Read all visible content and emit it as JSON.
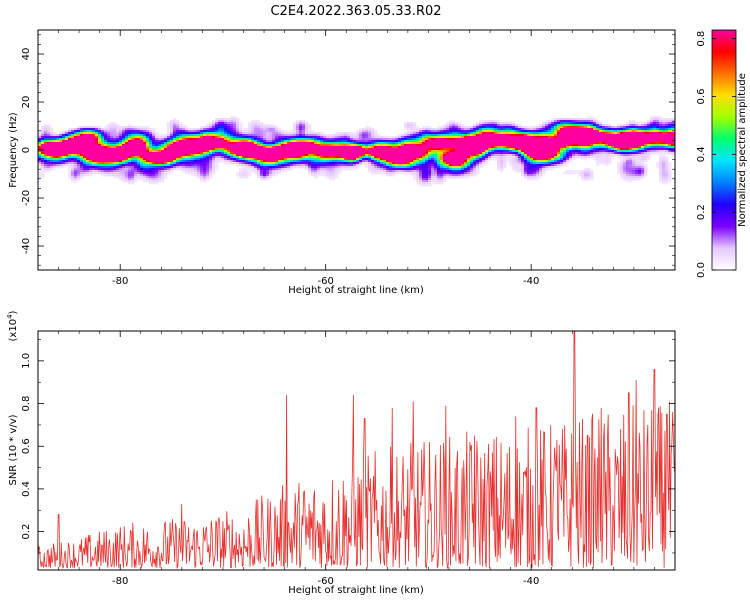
{
  "chart_data": [
    {
      "type": "heatmap",
      "title": "C2E4.2022.363.05.33.R02",
      "xlabel": "Height of straight line (km)",
      "ylabel": "Frequency (Hz)",
      "xlim": [
        -88,
        -26
      ],
      "ylim": [
        -50,
        50
      ],
      "xticks": [
        -80,
        -60,
        -40
      ],
      "yticks": [
        -40,
        -20,
        0,
        20,
        40
      ],
      "colorbar": {
        "label": "Normalized spectral amplitude",
        "range": [
          0.0,
          0.83
        ],
        "ticks": [
          0.0,
          0.2,
          0.4,
          0.6,
          0.8
        ],
        "colors": [
          "#ffffff",
          "#e6c8ff",
          "#7a00ff",
          "#2200ff",
          "#0080ff",
          "#00e5ff",
          "#00ff70",
          "#a0ff00",
          "#ffe000",
          "#ff7000",
          "#ff0000",
          "#ff00a0"
        ]
      },
      "band": {
        "center_frequency_hz": 0,
        "half_width_hz": 8,
        "peaks": [
          {
            "x": -86.5,
            "y": 1,
            "a": 0.45
          },
          {
            "x": -84.5,
            "y": 0,
            "a": 0.4
          },
          {
            "x": -83.2,
            "y": 5,
            "a": 0.35
          },
          {
            "x": -82.5,
            "y": -1,
            "a": 0.5
          },
          {
            "x": -80.2,
            "y": -3,
            "a": 0.45
          },
          {
            "x": -78.5,
            "y": 0,
            "a": 0.5
          },
          {
            "x": -76.8,
            "y": -3,
            "a": 0.6
          },
          {
            "x": -74.3,
            "y": 0,
            "a": 0.55
          },
          {
            "x": -72.5,
            "y": 1,
            "a": 0.45
          },
          {
            "x": -70.5,
            "y": 2,
            "a": 0.4
          },
          {
            "x": -68.3,
            "y": 0,
            "a": 0.45
          },
          {
            "x": -66.5,
            "y": -1,
            "a": 0.4
          },
          {
            "x": -64.3,
            "y": -1,
            "a": 0.55
          },
          {
            "x": -62.5,
            "y": 1,
            "a": 0.45
          },
          {
            "x": -60.2,
            "y": 0,
            "a": 0.45
          },
          {
            "x": -57.3,
            "y": -1,
            "a": 0.7
          },
          {
            "x": -55.0,
            "y": -1,
            "a": 0.45
          },
          {
            "x": -53.0,
            "y": -3,
            "a": 0.4
          },
          {
            "x": -51.3,
            "y": -1,
            "a": 0.45
          },
          {
            "x": -49.2,
            "y": 3,
            "a": 0.5
          },
          {
            "x": -47.3,
            "y": -3,
            "a": 0.45
          },
          {
            "x": -46.2,
            "y": 3,
            "a": 0.45
          },
          {
            "x": -44.8,
            "y": 3,
            "a": 0.5
          },
          {
            "x": -43.3,
            "y": 4,
            "a": 0.45
          },
          {
            "x": -41.5,
            "y": 2,
            "a": 0.5
          },
          {
            "x": -39.3,
            "y": 1,
            "a": 0.83
          },
          {
            "x": -37.2,
            "y": 3,
            "a": 0.5
          },
          {
            "x": -35.8,
            "y": 6,
            "a": 0.6
          },
          {
            "x": -34.0,
            "y": 5,
            "a": 0.45
          },
          {
            "x": -32.0,
            "y": 4,
            "a": 0.5
          },
          {
            "x": -30.3,
            "y": 3,
            "a": 0.55
          },
          {
            "x": -28.5,
            "y": 6,
            "a": 0.45
          },
          {
            "x": -26.5,
            "y": 5,
            "a": 0.6
          }
        ]
      }
    },
    {
      "type": "line",
      "xlabel": "Height of straight line (km)",
      "ylabel": "SNR (10 * v/v)",
      "yscale_label": "(x10",
      "yscale_exp": "4",
      "yscale_close": ")",
      "xlim": [
        -88,
        -26
      ],
      "ylim": [
        0.02,
        1.14
      ],
      "xticks": [
        -80,
        -60,
        -40
      ],
      "yticks": [
        0.2,
        0.4,
        0.6,
        0.8,
        1.0
      ],
      "ytick_labels": [
        "0.2",
        "0.4",
        "0.6",
        "0.8",
        "1.0"
      ],
      "color": "#e8312f",
      "envelope": [
        [
          -88,
          0.1
        ],
        [
          -84,
          0.14
        ],
        [
          -80,
          0.2
        ],
        [
          -76,
          0.22
        ],
        [
          -72,
          0.24
        ],
        [
          -68,
          0.28
        ],
        [
          -64,
          0.38
        ],
        [
          -60,
          0.45
        ],
        [
          -56,
          0.52
        ],
        [
          -52,
          0.56
        ],
        [
          -48,
          0.6
        ],
        [
          -44,
          0.62
        ],
        [
          -40,
          0.64
        ],
        [
          -36,
          0.68
        ],
        [
          -32,
          0.72
        ],
        [
          -26,
          0.75
        ]
      ],
      "peaks": [
        {
          "x": -63.8,
          "y": 0.84
        },
        {
          "x": -57.3,
          "y": 0.84
        },
        {
          "x": -56.2,
          "y": 0.73
        },
        {
          "x": -53.5,
          "y": 0.78
        },
        {
          "x": -51.5,
          "y": 0.81
        },
        {
          "x": -48.3,
          "y": 0.79
        },
        {
          "x": -45.5,
          "y": 0.65
        },
        {
          "x": -41.5,
          "y": 0.74
        },
        {
          "x": -39.5,
          "y": 0.78
        },
        {
          "x": -37.5,
          "y": 0.63
        },
        {
          "x": -35.8,
          "y": 1.14
        },
        {
          "x": -34.5,
          "y": 0.65
        },
        {
          "x": -33.2,
          "y": 0.78
        },
        {
          "x": -30.5,
          "y": 0.85
        },
        {
          "x": -29.8,
          "y": 0.91
        },
        {
          "x": -28.0,
          "y": 0.96
        },
        {
          "x": -26.8,
          "y": 0.75
        },
        {
          "x": -74.0,
          "y": 0.33
        },
        {
          "x": -86.0,
          "y": 0.28
        }
      ]
    }
  ]
}
